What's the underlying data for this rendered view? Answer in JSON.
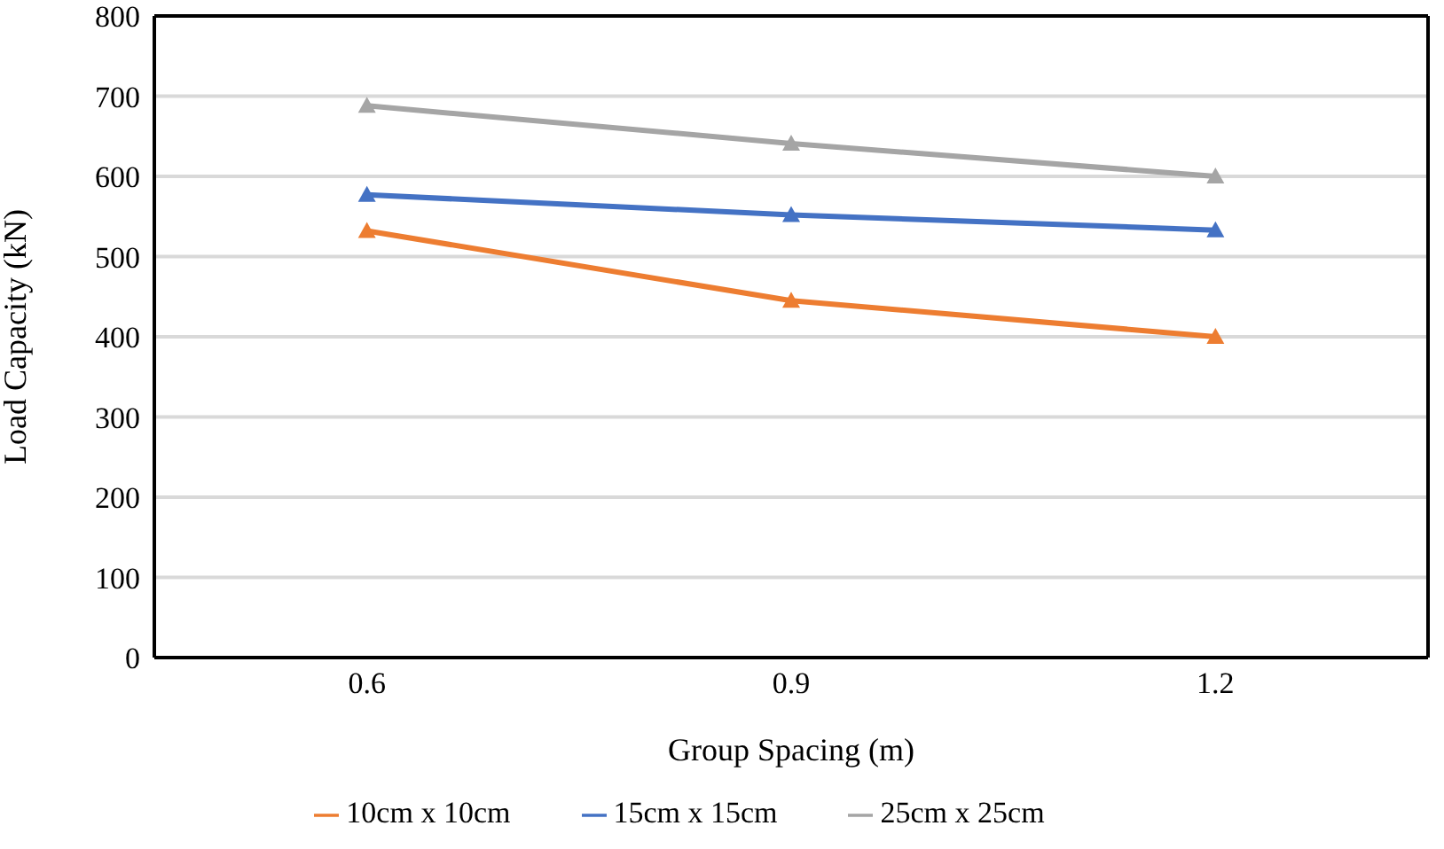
{
  "chart_data": {
    "type": "line",
    "xlabel": "Group Spacing  (m)",
    "ylabel": "Load Capacity (kN)",
    "categories": [
      "0.6",
      "0.9",
      "1.2"
    ],
    "series": [
      {
        "name": "10cm x 10cm",
        "color": "#ed7d31",
        "values": [
          532,
          445,
          400
        ]
      },
      {
        "name": "15cm x 15cm",
        "color": "#4472c4",
        "values": [
          577,
          552,
          533
        ]
      },
      {
        "name": "25cm x 25cm",
        "color": "#a5a5a5",
        "values": [
          688,
          641,
          600
        ]
      }
    ],
    "ylim": [
      0,
      800
    ],
    "yticks": [
      0,
      100,
      200,
      300,
      400,
      500,
      600,
      700,
      800
    ],
    "grid": "y",
    "legend": "bottom",
    "marker": "triangle",
    "line_style": "solid"
  }
}
